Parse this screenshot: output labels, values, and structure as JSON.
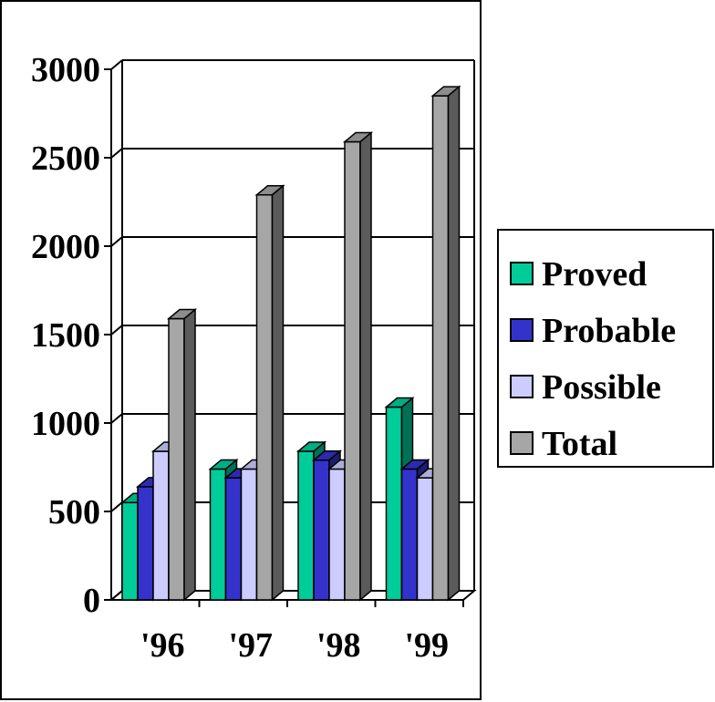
{
  "chart_data": {
    "type": "bar",
    "title": "",
    "xlabel": "",
    "ylabel": "",
    "ylim": [
      0,
      3000
    ],
    "y_ticks": [
      "0",
      "500",
      "1000",
      "1500",
      "2000",
      "2500",
      "3000"
    ],
    "categories": [
      "'96",
      "'97",
      "'98",
      "'99"
    ],
    "series": [
      {
        "name": "Proved",
        "color": "#00cc99",
        "values": [
          550,
          740,
          840,
          1090
        ]
      },
      {
        "name": "Probable",
        "color": "#3333cc",
        "values": [
          640,
          690,
          790,
          740
        ]
      },
      {
        "name": "Possible",
        "color": "#ccccff",
        "values": [
          840,
          740,
          740,
          690
        ]
      },
      {
        "name": "Total",
        "color": "#a6a6a6",
        "values": [
          1590,
          2290,
          2590,
          2850
        ]
      }
    ],
    "grid": true,
    "style": "3d-clustered-columns",
    "legend_position": "right"
  }
}
